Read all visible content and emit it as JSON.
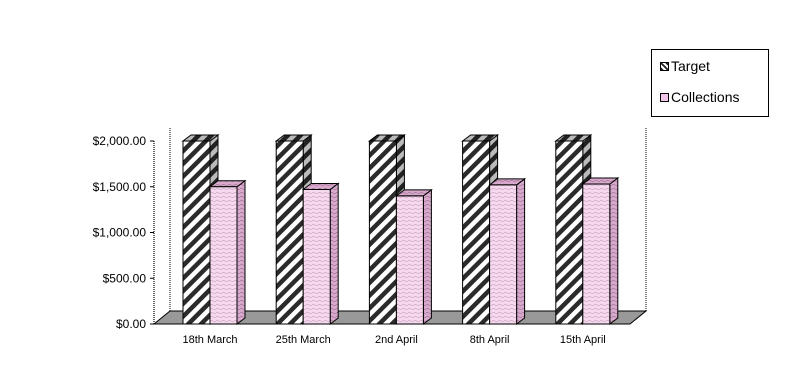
{
  "chart_data": {
    "type": "bar",
    "categories": [
      "18th March",
      "25th March",
      "2nd April",
      "8th April",
      "15th April"
    ],
    "series": [
      {
        "name": "Target",
        "values": [
          2000,
          2000,
          2000,
          2000,
          2000
        ],
        "color": "#666666"
      },
      {
        "name": "Collections",
        "values": [
          1500,
          1470,
          1400,
          1520,
          1530
        ],
        "color": "#f2c6e8"
      }
    ],
    "yticks": [
      "$0.00",
      "$500.00",
      "$1,000.00",
      "$1,500.00",
      "$2,000.00"
    ],
    "ylim": [
      0,
      2000
    ],
    "title": "",
    "xlabel": "",
    "ylabel": "",
    "legend_position": "top-right",
    "grid": false,
    "style": "3d-clustered-column"
  }
}
